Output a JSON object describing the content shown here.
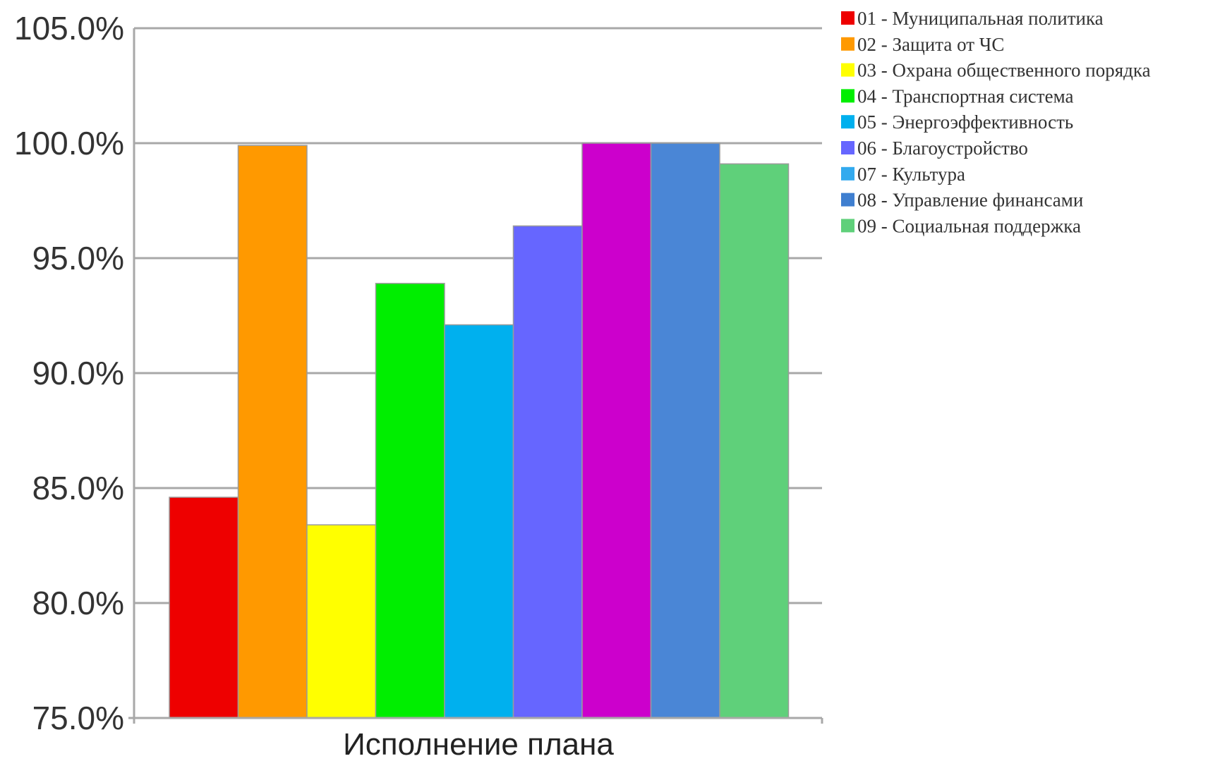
{
  "chart_data": {
    "type": "bar",
    "title": "",
    "xlabel": "Исполнение плана",
    "ylabel": "",
    "ylim": [
      75,
      105
    ],
    "y_ticks": [
      "75.0%",
      "80.0%",
      "85.0%",
      "90.0%",
      "95.0%",
      "100.0%",
      "105.0%"
    ],
    "grid": true,
    "legend_position": "right",
    "categories": [
      "Исполнение плана"
    ],
    "series": [
      {
        "name": "01 - Муниципальная политика",
        "value": 84.6,
        "color": "#ee0000"
      },
      {
        "name": "02 - Защита от ЧС",
        "value": 99.9,
        "color": "#ff9900"
      },
      {
        "name": "03 - Охрана общественного порядка",
        "value": 83.4,
        "color": "#ffff00"
      },
      {
        "name": "04 - Транспортная система",
        "value": 93.9,
        "color": "#00ee00"
      },
      {
        "name": "05 - Энергоэффективность",
        "value": 92.1,
        "color": "#00b0ee"
      },
      {
        "name": "06 - Благоустройство",
        "value": 96.4,
        "color": "#6666ff"
      },
      {
        "name": "07 - Культура",
        "value": 100.0,
        "color": "#cc00cc"
      },
      {
        "name": "08 - Управление финансами",
        "value": 100.0,
        "color": "#4a86d6"
      },
      {
        "name": "09 - Социальная поддержка",
        "value": 99.1,
        "color": "#5fd07a"
      }
    ],
    "legend_colors": [
      "#ee0000",
      "#ff9900",
      "#ffff00",
      "#00ee00",
      "#00b0ee",
      "#6666ff",
      "#33aaee",
      "#3f7fd0",
      "#5fd07a"
    ]
  }
}
